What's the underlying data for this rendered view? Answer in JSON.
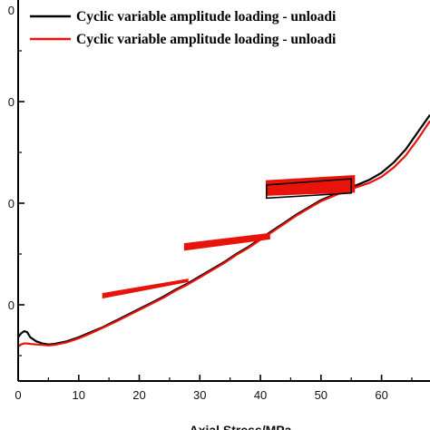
{
  "chart_data": {
    "type": "line",
    "title": "",
    "xlabel": "Axial Stress/MPa",
    "ylabel": "",
    "xlim": [
      0,
      68
    ],
    "ylim": [
      0,
      37.5
    ],
    "x_ticks": [
      0,
      10,
      20,
      30,
      40,
      50,
      60
    ],
    "y_ticks": [
      7.5,
      17.5,
      27.5
    ],
    "y_tick_labels": [
      "0",
      "0",
      "0"
    ],
    "grid": false,
    "legend": {
      "placement": "top",
      "entries": [
        "Cyclic variable amplitude loading - unloadi",
        "Cyclic variable amplitude loading - unloadi"
      ]
    },
    "series": [
      {
        "name": "Cyclic variable amplitude loading - unloadi",
        "color": "#000000",
        "x": [
          0,
          0.5,
          1,
          1.5,
          2,
          3,
          4,
          5,
          6,
          8,
          10,
          12,
          14,
          16,
          18,
          20,
          22,
          24,
          26,
          28,
          30,
          32,
          34,
          36,
          38,
          40,
          42,
          44,
          46,
          48,
          50,
          52,
          54,
          56,
          58,
          60,
          62,
          64,
          66,
          68
        ],
        "y": [
          4.3,
          4.7,
          4.9,
          4.8,
          4.3,
          3.9,
          3.7,
          3.6,
          3.65,
          3.9,
          4.3,
          4.8,
          5.3,
          5.9,
          6.5,
          7.1,
          7.7,
          8.3,
          9.0,
          9.6,
          10.3,
          11.0,
          11.7,
          12.5,
          13.2,
          14.0,
          14.8,
          15.6,
          16.4,
          17.1,
          17.8,
          18.3,
          18.9,
          19.3,
          19.8,
          20.5,
          21.5,
          22.8,
          24.5,
          26.2
        ]
      },
      {
        "name": "Cyclic variable amplitude loading - unloadi",
        "color": "#e8140c",
        "x": [
          0,
          0.5,
          1,
          1.5,
          2,
          3,
          4,
          5,
          6,
          8,
          10,
          12,
          14,
          16,
          18,
          20,
          22,
          24,
          26,
          28,
          30,
          32,
          34,
          36,
          38,
          40,
          42,
          44,
          46,
          48,
          50,
          52,
          54,
          56,
          58,
          60,
          62,
          64,
          66,
          68
        ],
        "y": [
          3.4,
          3.6,
          3.7,
          3.7,
          3.65,
          3.6,
          3.55,
          3.5,
          3.55,
          3.8,
          4.2,
          4.7,
          5.25,
          5.8,
          6.4,
          7.0,
          7.6,
          8.2,
          8.9,
          9.5,
          10.2,
          10.9,
          11.6,
          12.4,
          13.1,
          13.9,
          14.7,
          15.5,
          16.3,
          17.0,
          17.7,
          18.2,
          18.7,
          19.1,
          19.5,
          20.1,
          21.0,
          22.2,
          23.8,
          25.6
        ]
      }
    ],
    "loops": [
      {
        "x": [
          14,
          28
        ],
        "y_upper": [
          8.6,
          10.0
        ],
        "y_lower": [
          8.2,
          9.8
        ],
        "color": "#e8140c"
      },
      {
        "x": [
          27.5,
          41.5
        ],
        "y_upper": [
          13.5,
          14.5
        ],
        "y_lower": [
          12.9,
          14.0
        ],
        "color": "#e8140c"
      },
      {
        "x": [
          41,
          55.5
        ],
        "y_upper": [
          19.7,
          20.2
        ],
        "y_lower": [
          18.3,
          18.6
        ],
        "color": "#e8140c"
      },
      {
        "x": [
          41,
          55
        ],
        "y_upper": [
          19.3,
          19.9
        ],
        "y_lower": [
          18.0,
          18.5
        ],
        "color": "#000000"
      }
    ]
  }
}
